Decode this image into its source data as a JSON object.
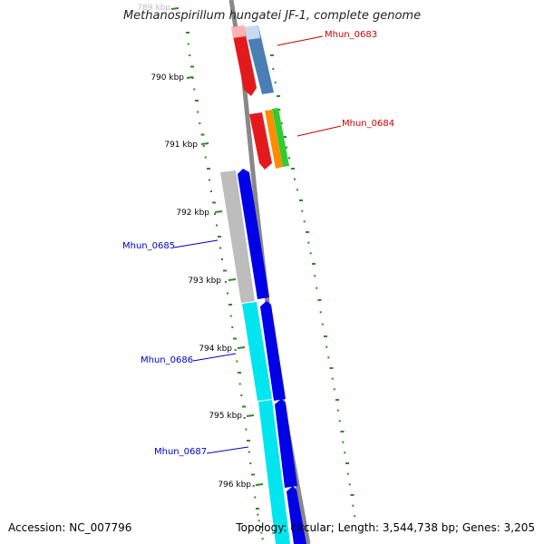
{
  "title": "Methanospirillum hungatei JF-1, complete genome",
  "accession_label": "Accession: NC_007796",
  "topology_label": "Topology: circular; Length: 3,544,738 bp; Genes: 3,205",
  "colors": {
    "backbone": "#808080",
    "gc_skew_dots": "#2e8b22",
    "label_red": "#cc0000",
    "label_blue": "#0000cc"
  },
  "ticks": [
    "789 kbp",
    "790 kbp",
    "791 kbp",
    "792 kbp",
    "793 kbp",
    "794 kbp",
    "795 kbp",
    "796 kbp"
  ],
  "gene_labels": [
    "Mhun_0683",
    "Mhun_0684",
    "Mhun_0685",
    "Mhun_0686",
    "Mhun_0687"
  ]
}
